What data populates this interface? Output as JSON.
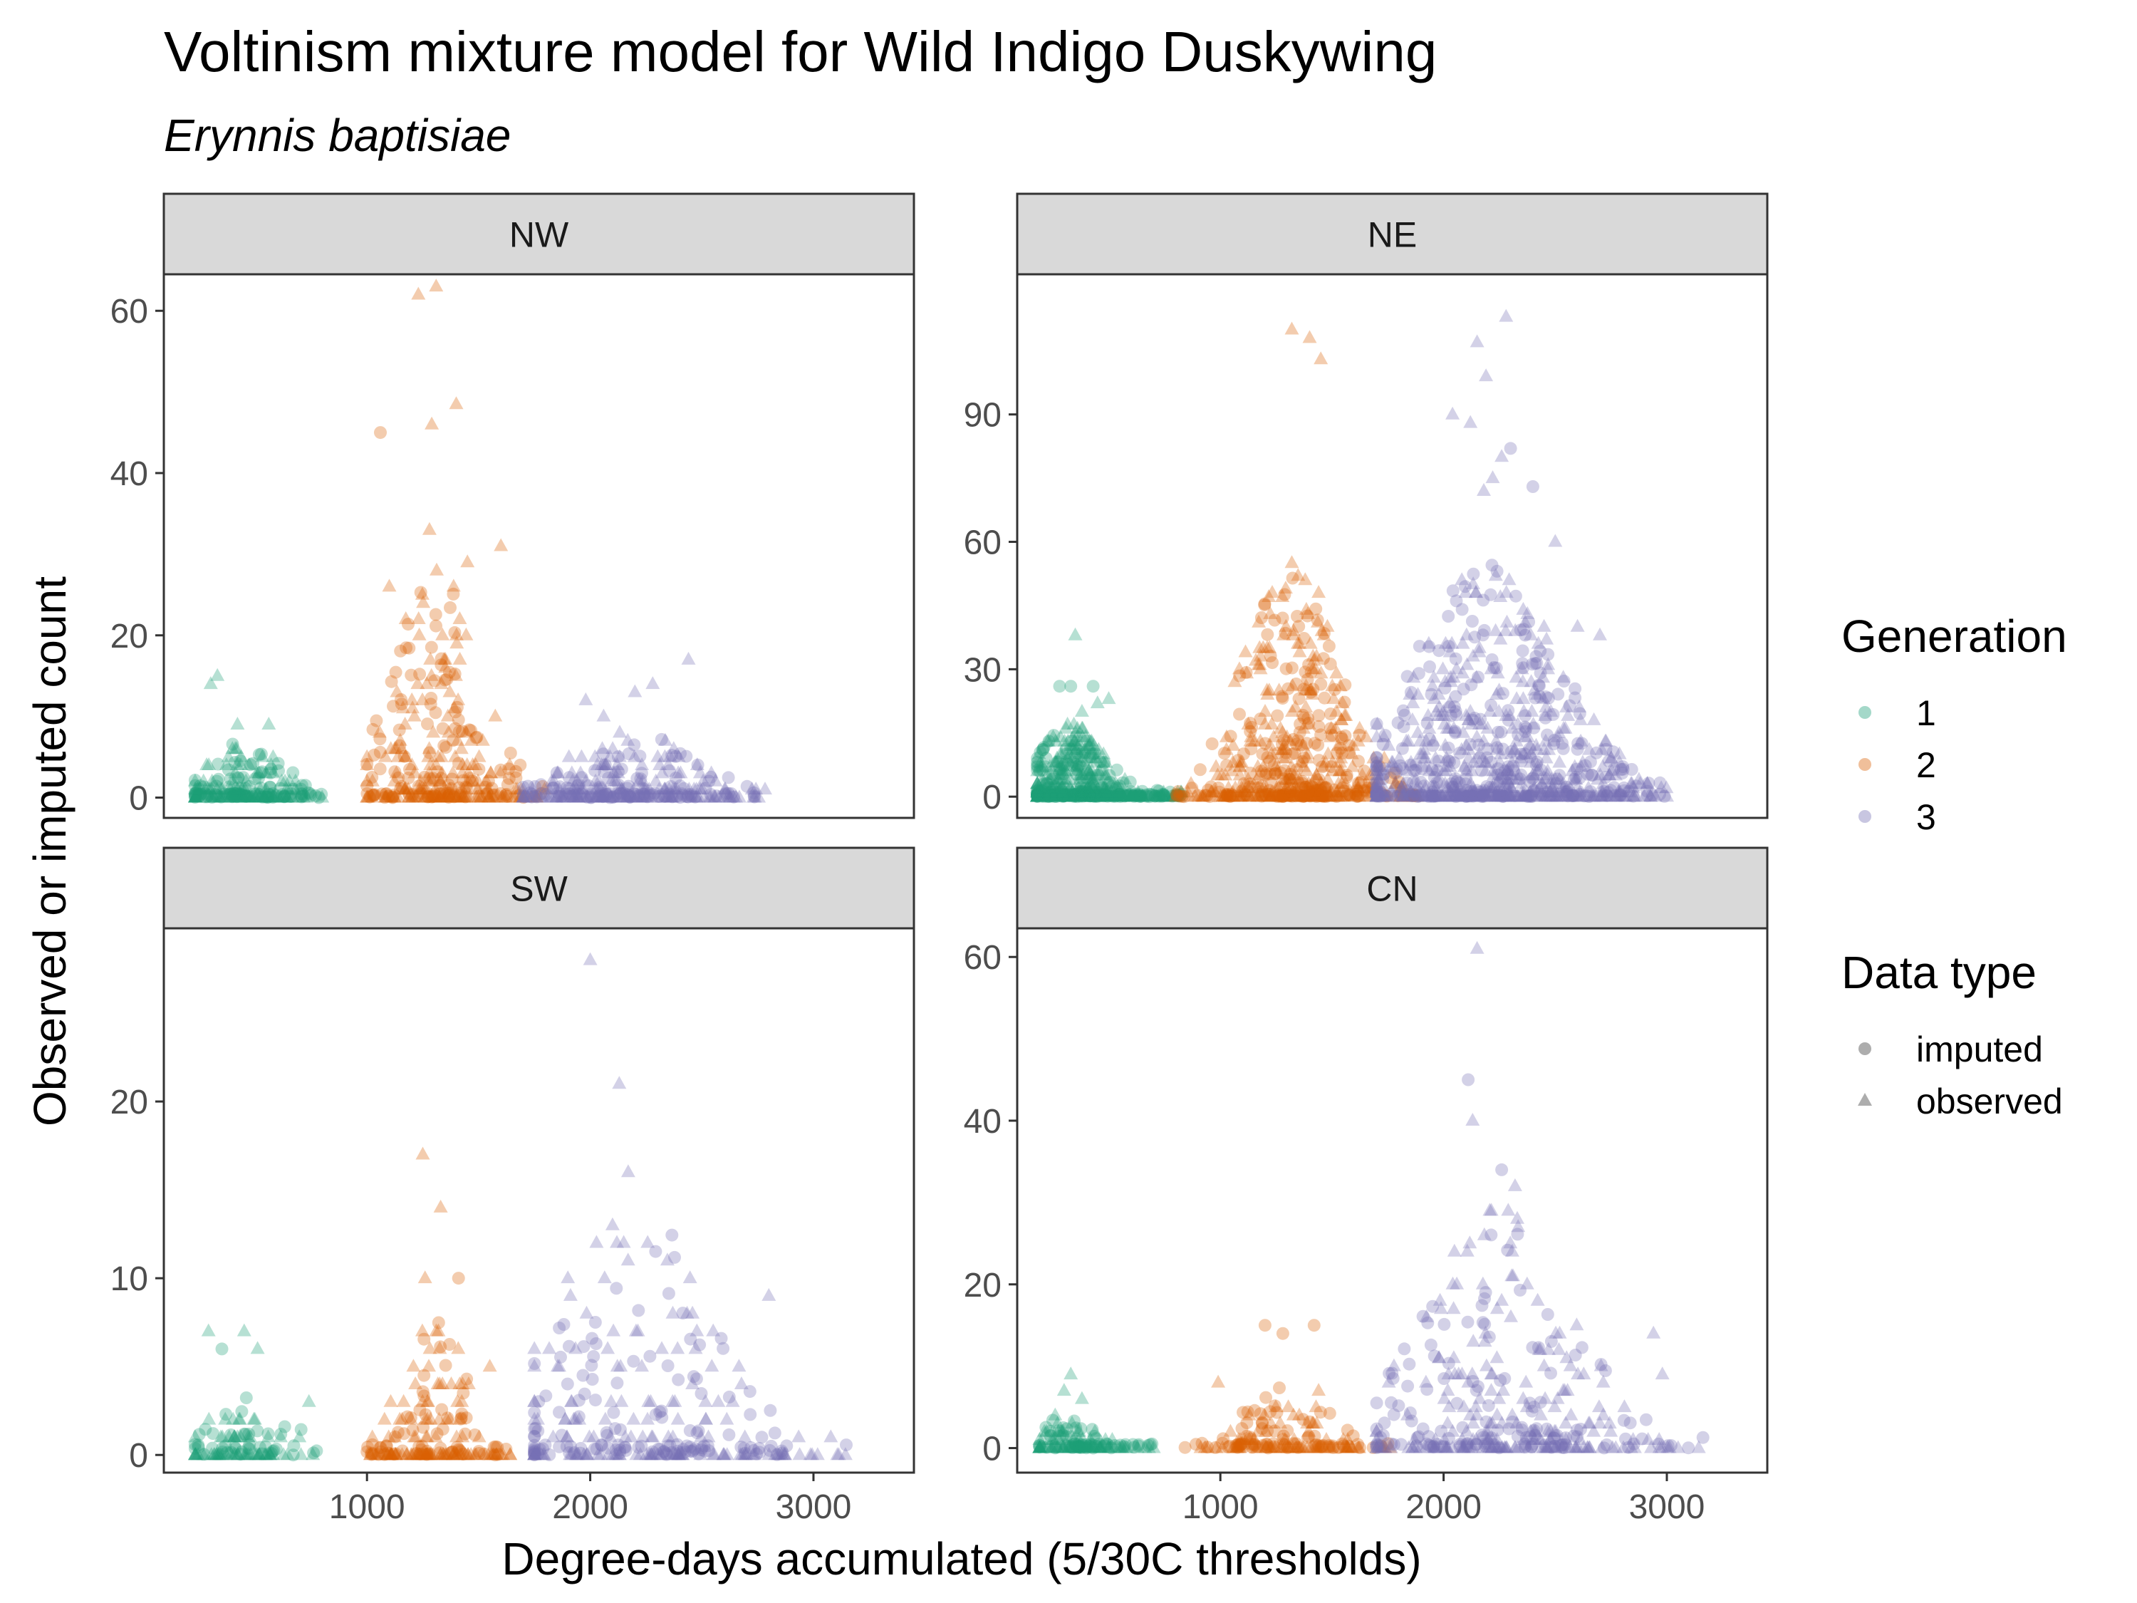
{
  "chart_data": {
    "type": "scatter",
    "title": "Voltinism mixture model for Wild Indigo Duskywing",
    "subtitle": "Erynnis baptisiae",
    "xlabel": "Degree-days accumulated (5/30C thresholds)",
    "ylabel": "Observed or imputed count",
    "x_ticks": [
      1000,
      2000,
      3000
    ],
    "xlim": [
      90,
      3450
    ],
    "grid": false,
    "legend_placement": "right",
    "legends": [
      {
        "title": "Generation",
        "entries": [
          {
            "label": "1",
            "color": "#1B9E77"
          },
          {
            "label": "2",
            "color": "#D95F02"
          },
          {
            "label": "3",
            "color": "#7570B3"
          }
        ]
      },
      {
        "title": "Data type",
        "entries": [
          {
            "label": "imputed",
            "shape": "circle"
          },
          {
            "label": "observed",
            "shape": "triangle"
          }
        ]
      }
    ],
    "panels": [
      {
        "name": "NW",
        "ylim": [
          -2.5,
          64.5
        ],
        "y_ticks": [
          0,
          20,
          40,
          60
        ],
        "groups": [
          {
            "generation": "1",
            "x_range": [
              230,
              800
            ],
            "peak_x": 450,
            "spread": 150,
            "n": 220,
            "max": 15,
            "highlights": [
              [
                330,
                15
              ],
              [
                300,
                14
              ],
              [
                420,
                9
              ],
              [
                560,
                9
              ],
              [
                680,
                2
              ]
            ]
          },
          {
            "generation": "2",
            "x_range": [
              1000,
              1800
            ],
            "peak_x": 1320,
            "spread": 170,
            "n": 320,
            "max": 63,
            "highlights": [
              [
                1230,
                62
              ],
              [
                1310,
                63
              ],
              [
                1290,
                46
              ],
              [
                1400,
                48.5
              ],
              [
                1060,
                45
              ],
              [
                1280,
                33
              ],
              [
                1600,
                31
              ],
              [
                1100,
                26
              ],
              [
                1450,
                29
              ]
            ]
          },
          {
            "generation": "3",
            "x_range": [
              1700,
              2800
            ],
            "peak_x": 2180,
            "spread": 260,
            "n": 320,
            "max": 17,
            "highlights": [
              [
                2440,
                17
              ],
              [
                2280,
                14
              ],
              [
                2200,
                13
              ],
              [
                1980,
                12
              ],
              [
                2060,
                10
              ]
            ]
          }
        ]
      },
      {
        "name": "NE",
        "ylim": [
          -5,
          123
        ],
        "y_ticks": [
          0,
          30,
          60,
          90
        ],
        "groups": [
          {
            "generation": "1",
            "x_range": [
              180,
              830
            ],
            "peak_x": 330,
            "spread": 130,
            "n": 520,
            "max": 38,
            "highlights": [
              [
                350,
                38
              ],
              [
                280,
                26
              ],
              [
                330,
                26
              ],
              [
                430,
                26
              ],
              [
                500,
                23
              ],
              [
                450,
                22
              ],
              [
                380,
                20
              ],
              [
                360,
                16
              ]
            ]
          },
          {
            "generation": "2",
            "x_range": [
              800,
              1900
            ],
            "peak_x": 1320,
            "spread": 200,
            "n": 560,
            "max": 110,
            "highlights": [
              [
                1320,
                110
              ],
              [
                1400,
                108
              ],
              [
                1450,
                103
              ],
              [
                1320,
                55
              ],
              [
                1380,
                51
              ],
              [
                1440,
                48
              ],
              [
                1220,
                35
              ],
              [
                1180,
                30
              ]
            ]
          },
          {
            "generation": "3",
            "x_range": [
              1700,
              3000
            ],
            "peak_x": 2200,
            "spread": 300,
            "n": 820,
            "max": 113,
            "highlights": [
              [
                2280,
                113
              ],
              [
                2150,
                107
              ],
              [
                2190,
                99
              ],
              [
                2040,
                90
              ],
              [
                2120,
                88
              ],
              [
                2300,
                82
              ],
              [
                2260,
                80
              ],
              [
                2220,
                75
              ],
              [
                2180,
                72
              ],
              [
                2400,
                73
              ],
              [
                2500,
                60
              ],
              [
                2600,
                40
              ],
              [
                2700,
                38
              ]
            ]
          }
        ]
      },
      {
        "name": "SW",
        "ylim": [
          -1,
          29.8
        ],
        "y_ticks": [
          0,
          10,
          20
        ],
        "groups": [
          {
            "generation": "1",
            "x_range": [
              230,
              780
            ],
            "peak_x": 420,
            "spread": 120,
            "n": 110,
            "max": 7,
            "highlights": [
              [
                290,
                7
              ],
              [
                450,
                7
              ],
              [
                350,
                6
              ],
              [
                510,
                6
              ],
              [
                740,
                3
              ]
            ]
          },
          {
            "generation": "2",
            "x_range": [
              1000,
              1650
            ],
            "peak_x": 1300,
            "spread": 130,
            "n": 190,
            "max": 17,
            "highlights": [
              [
                1250,
                17
              ],
              [
                1330,
                14
              ],
              [
                1260,
                10
              ],
              [
                1410,
                10
              ],
              [
                1550,
                5
              ]
            ]
          },
          {
            "generation": "3",
            "x_range": [
              1750,
              3200
            ],
            "peak_x": 2200,
            "spread": 330,
            "n": 300,
            "max": 28,
            "highlights": [
              [
                2000,
                28
              ],
              [
                2130,
                21
              ],
              [
                2170,
                16
              ],
              [
                2100,
                13
              ],
              [
                2150,
                12
              ],
              [
                2800,
                9
              ],
              [
                1900,
                10
              ]
            ]
          }
        ]
      },
      {
        "name": "CN",
        "ylim": [
          -3,
          63.5
        ],
        "y_ticks": [
          0,
          20,
          40,
          60
        ],
        "groups": [
          {
            "generation": "1",
            "x_range": [
              190,
              720
            ],
            "peak_x": 340,
            "spread": 110,
            "n": 140,
            "max": 9,
            "highlights": [
              [
                330,
                9
              ],
              [
                300,
                7
              ],
              [
                380,
                6
              ],
              [
                260,
                4
              ]
            ]
          },
          {
            "generation": "2",
            "x_range": [
              800,
              1820
            ],
            "peak_x": 1300,
            "spread": 180,
            "n": 170,
            "max": 15,
            "highlights": [
              [
                1200,
                15
              ],
              [
                1420,
                15
              ],
              [
                1280,
                14
              ],
              [
                990,
                8
              ],
              [
                1440,
                7
              ]
            ]
          },
          {
            "generation": "3",
            "x_range": [
              1700,
              3200
            ],
            "peak_x": 2250,
            "spread": 300,
            "n": 360,
            "max": 61,
            "highlights": [
              [
                2150,
                61
              ],
              [
                2110,
                45
              ],
              [
                2130,
                40
              ],
              [
                2260,
                34
              ],
              [
                2320,
                32
              ],
              [
                2260,
                18
              ],
              [
                2240,
                17
              ],
              [
                2940,
                14
              ],
              [
                2980,
                9
              ]
            ]
          }
        ]
      }
    ]
  }
}
